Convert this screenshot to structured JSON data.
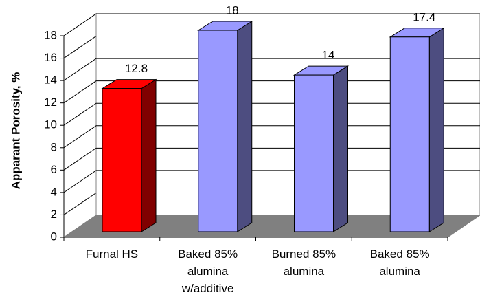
{
  "chart_data": {
    "type": "bar3d",
    "y_label": "Apparant Porosity, %",
    "categories": [
      "Furnal HS",
      "Baked 85% alumina w/additive",
      "Burned 85% alumina",
      "Baked 85% alumina"
    ],
    "values": [
      12.8,
      18,
      14,
      17.4
    ],
    "colors": [
      "#ff0000",
      "#9999ff",
      "#9999ff",
      "#9999ff"
    ],
    "side_colors": [
      "#800000",
      "#4d4d80",
      "#4d4d80",
      "#4d4d80"
    ],
    "ylim": [
      0,
      18
    ],
    "yticks": [
      0,
      2,
      4,
      6,
      8,
      10,
      12,
      14,
      16,
      18
    ],
    "grid": true
  }
}
